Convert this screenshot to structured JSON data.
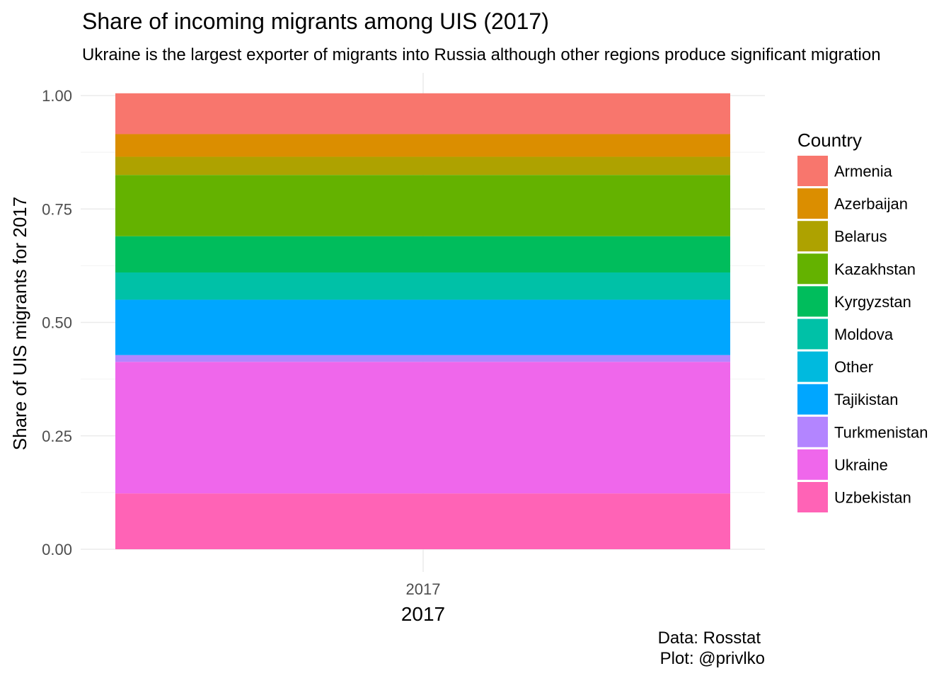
{
  "chart_data": {
    "type": "bar",
    "stacked": true,
    "title": "Share of incoming migrants among UIS (2017)",
    "subtitle": "Ukraine is the largest exporter of migrants into Russia although other regions produce significant migration",
    "xlabel": "2017",
    "ylabel": "Share of UIS migrants for 2017",
    "categories": [
      "2017"
    ],
    "ylim": [
      0,
      1
    ],
    "yticks": [
      "0.00",
      "0.25",
      "0.50",
      "0.75",
      "1.00"
    ],
    "grid": true,
    "legend_title": "Country",
    "legend_position": "right",
    "series": [
      {
        "name": "Armenia",
        "values": [
          0.09
        ],
        "color": "#F8766D"
      },
      {
        "name": "Azerbaijan",
        "values": [
          0.05
        ],
        "color": "#DB8E00"
      },
      {
        "name": "Belarus",
        "values": [
          0.04
        ],
        "color": "#AEA200"
      },
      {
        "name": "Kazakhstan",
        "values": [
          0.135
        ],
        "color": "#64B200"
      },
      {
        "name": "Kyrgyzstan",
        "values": [
          0.08
        ],
        "color": "#00BD5C"
      },
      {
        "name": "Moldova",
        "values": [
          0.06
        ],
        "color": "#00C1A7"
      },
      {
        "name": "Other",
        "values": [
          0.0
        ],
        "color": "#00BADE"
      },
      {
        "name": "Tajikistan",
        "values": [
          0.122
        ],
        "color": "#00A6FF"
      },
      {
        "name": "Turkmenistan",
        "values": [
          0.015
        ],
        "color": "#B385FF"
      },
      {
        "name": "Ukraine",
        "values": [
          0.29
        ],
        "color": "#EF67EB"
      },
      {
        "name": "Uzbekistan",
        "values": [
          0.123
        ],
        "color": "#FF63B6"
      }
    ],
    "caption": [
      "Data: Rosstat",
      "Plot: @privlko"
    ]
  }
}
